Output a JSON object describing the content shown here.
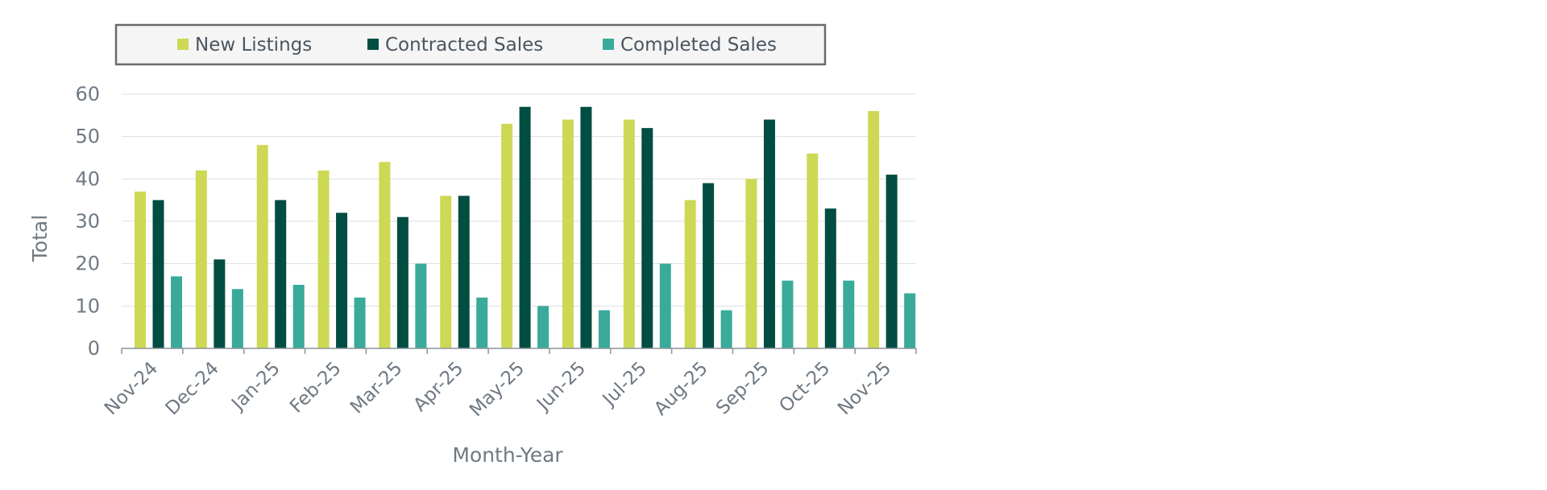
{
  "chart_data": {
    "type": "bar",
    "title": "",
    "xlabel": "Month-Year",
    "ylabel": "Total",
    "ylim": [
      0,
      60
    ],
    "yticks": [
      0,
      10,
      20,
      30,
      40,
      50,
      60
    ],
    "grid": true,
    "legend_position": "top",
    "categories": [
      "Nov-24",
      "Dec-24",
      "Jan-25",
      "Feb-25",
      "Mar-25",
      "Apr-25",
      "May-25",
      "Jun-25",
      "Jul-25",
      "Aug-25",
      "Sep-25",
      "Oct-25",
      "Nov-25"
    ],
    "series": [
      {
        "name": "New Listings",
        "color": "#cdd855",
        "values": [
          37,
          42,
          48,
          42,
          44,
          36,
          53,
          54,
          54,
          35,
          40,
          46,
          56
        ]
      },
      {
        "name": "Contracted Sales",
        "color": "#024d42",
        "values": [
          35,
          21,
          35,
          32,
          31,
          36,
          57,
          57,
          52,
          39,
          54,
          33,
          41
        ]
      },
      {
        "name": "Completed Sales",
        "color": "#3aaa9a",
        "values": [
          17,
          14,
          15,
          12,
          20,
          12,
          10,
          9,
          20,
          9,
          16,
          16,
          13
        ]
      }
    ]
  },
  "colors": {
    "axis_text": "#6f7983",
    "grid": "#dcdfe2",
    "axis_line": "#8c949b",
    "legend_border": "#6b6b6b",
    "legend_bg": "#f5f5f5"
  }
}
